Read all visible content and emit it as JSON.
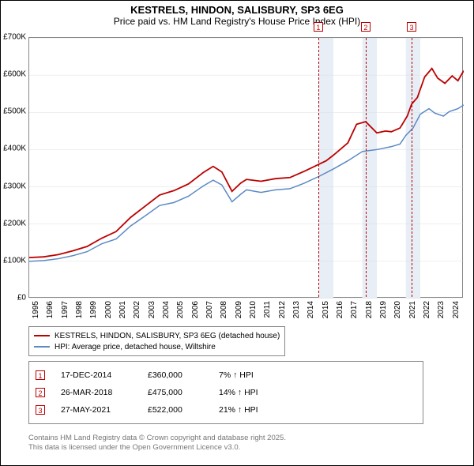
{
  "title_line1": "KESTRELS, HINDON, SALISBURY, SP3 6EG",
  "title_line2": "Price paid vs. HM Land Registry's House Price Index (HPI)",
  "chart": {
    "type": "line",
    "background_color": "#ffffff",
    "shaded_band_color": "#e8eef6",
    "grid_color": "#dddddd",
    "axis_color": "#888888",
    "marker_line_color": "#bb0000",
    "x_min": 1995,
    "x_max": 2025,
    "x_ticks": [
      1995,
      1996,
      1997,
      1998,
      1999,
      2000,
      2001,
      2002,
      2003,
      2004,
      2005,
      2006,
      2007,
      2008,
      2009,
      2010,
      2011,
      2012,
      2013,
      2014,
      2015,
      2016,
      2017,
      2018,
      2019,
      2020,
      2021,
      2022,
      2023,
      2024
    ],
    "y_min": 0,
    "y_max": 700000,
    "y_ticks": [
      0,
      100000,
      200000,
      300000,
      400000,
      500000,
      600000,
      700000
    ],
    "y_tick_labels": [
      "£0",
      "£100K",
      "£200K",
      "£300K",
      "£400K",
      "£500K",
      "£600K",
      "£700K"
    ],
    "shaded_bands": [
      {
        "from": 2015,
        "to": 2016
      },
      {
        "from": 2018,
        "to": 2019
      },
      {
        "from": 2021,
        "to": 2022
      }
    ],
    "markers": [
      {
        "num": "1",
        "x": 2014.96
      },
      {
        "num": "2",
        "x": 2018.23
      },
      {
        "num": "3",
        "x": 2021.4
      }
    ],
    "series": [
      {
        "name": "KESTRELS, HINDON, SALISBURY, SP3 6EG (detached house)",
        "color": "#bb0000",
        "line_width": 1.8,
        "points": [
          [
            1995,
            110000
          ],
          [
            1996,
            112000
          ],
          [
            1997,
            118000
          ],
          [
            1998,
            128000
          ],
          [
            1999,
            140000
          ],
          [
            2000,
            162000
          ],
          [
            2001,
            180000
          ],
          [
            2002,
            218000
          ],
          [
            2003,
            248000
          ],
          [
            2004,
            278000
          ],
          [
            2005,
            290000
          ],
          [
            2006,
            308000
          ],
          [
            2007,
            338000
          ],
          [
            2007.7,
            355000
          ],
          [
            2008.3,
            340000
          ],
          [
            2009,
            288000
          ],
          [
            2009.6,
            310000
          ],
          [
            2010,
            320000
          ],
          [
            2011,
            315000
          ],
          [
            2012,
            322000
          ],
          [
            2013,
            325000
          ],
          [
            2014,
            342000
          ],
          [
            2014.96,
            360000
          ],
          [
            2015.5,
            370000
          ],
          [
            2016,
            385000
          ],
          [
            2017,
            418000
          ],
          [
            2017.6,
            468000
          ],
          [
            2018.23,
            475000
          ],
          [
            2019,
            445000
          ],
          [
            2019.6,
            450000
          ],
          [
            2020,
            448000
          ],
          [
            2020.6,
            458000
          ],
          [
            2021.1,
            490000
          ],
          [
            2021.4,
            522000
          ],
          [
            2021.8,
            540000
          ],
          [
            2022.3,
            595000
          ],
          [
            2022.8,
            618000
          ],
          [
            2023.2,
            592000
          ],
          [
            2023.7,
            578000
          ],
          [
            2024.2,
            598000
          ],
          [
            2024.6,
            585000
          ],
          [
            2025,
            612000
          ]
        ]
      },
      {
        "name": "HPI: Average price, detached house, Wiltshire",
        "color": "#5b8ac5",
        "line_width": 1.5,
        "points": [
          [
            1995,
            100000
          ],
          [
            1996,
            102000
          ],
          [
            1997,
            107000
          ],
          [
            1998,
            115000
          ],
          [
            1999,
            126000
          ],
          [
            2000,
            147000
          ],
          [
            2001,
            160000
          ],
          [
            2002,
            195000
          ],
          [
            2003,
            222000
          ],
          [
            2004,
            250000
          ],
          [
            2005,
            258000
          ],
          [
            2006,
            275000
          ],
          [
            2007,
            302000
          ],
          [
            2007.7,
            318000
          ],
          [
            2008.3,
            305000
          ],
          [
            2009,
            260000
          ],
          [
            2009.6,
            280000
          ],
          [
            2010,
            292000
          ],
          [
            2011,
            285000
          ],
          [
            2012,
            292000
          ],
          [
            2013,
            295000
          ],
          [
            2014,
            310000
          ],
          [
            2015,
            328000
          ],
          [
            2016,
            348000
          ],
          [
            2017,
            370000
          ],
          [
            2018,
            395000
          ],
          [
            2019,
            400000
          ],
          [
            2020,
            408000
          ],
          [
            2020.6,
            415000
          ],
          [
            2021,
            438000
          ],
          [
            2021.5,
            458000
          ],
          [
            2022,
            495000
          ],
          [
            2022.6,
            510000
          ],
          [
            2023,
            498000
          ],
          [
            2023.6,
            490000
          ],
          [
            2024,
            502000
          ],
          [
            2024.6,
            510000
          ],
          [
            2025,
            520000
          ]
        ]
      }
    ]
  },
  "legend": {
    "items": [
      {
        "color": "#bb0000",
        "label": "KESTRELS, HINDON, SALISBURY, SP3 6EG (detached house)"
      },
      {
        "color": "#5b8ac5",
        "label": "HPI: Average price, detached house, Wiltshire"
      }
    ]
  },
  "sales": [
    {
      "num": "1",
      "date": "17-DEC-2014",
      "price": "£360,000",
      "pct": "7% ↑ HPI"
    },
    {
      "num": "2",
      "date": "26-MAR-2018",
      "price": "£475,000",
      "pct": "14% ↑ HPI"
    },
    {
      "num": "3",
      "date": "27-MAY-2021",
      "price": "£522,000",
      "pct": "21% ↑ HPI"
    }
  ],
  "footer_line1": "Contains HM Land Registry data © Crown copyright and database right 2025.",
  "footer_line2": "This data is licensed under the Open Government Licence v3.0."
}
